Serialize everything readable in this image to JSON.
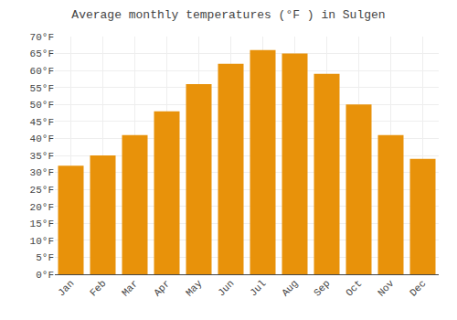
{
  "chart_data": {
    "type": "bar",
    "title": "Average monthly temperatures (°F ) in Sulgen",
    "categories": [
      "Jan",
      "Feb",
      "Mar",
      "Apr",
      "May",
      "Jun",
      "Jul",
      "Aug",
      "Sep",
      "Oct",
      "Nov",
      "Dec"
    ],
    "values": [
      32,
      35,
      41,
      48,
      56,
      62,
      66,
      65,
      59,
      50,
      41,
      34
    ],
    "color": "#E8920A",
    "ylim": [
      0,
      70
    ],
    "yticks": [
      {
        "value": 0,
        "label": "0°F"
      },
      {
        "value": 5,
        "label": "5°F"
      },
      {
        "value": 10,
        "label": "10°F"
      },
      {
        "value": 15,
        "label": "15°F"
      },
      {
        "value": 20,
        "label": "20°F"
      },
      {
        "value": 25,
        "label": "25°F"
      },
      {
        "value": 30,
        "label": "30°F"
      },
      {
        "value": 35,
        "label": "35°F"
      },
      {
        "value": 40,
        "label": "40°F"
      },
      {
        "value": 45,
        "label": "45°F"
      },
      {
        "value": 50,
        "label": "50°F"
      },
      {
        "value": 55,
        "label": "55°F"
      },
      {
        "value": 60,
        "label": "60°F"
      },
      {
        "value": 65,
        "label": "65°F"
      },
      {
        "value": 70,
        "label": "70°F"
      }
    ],
    "grid": true
  }
}
